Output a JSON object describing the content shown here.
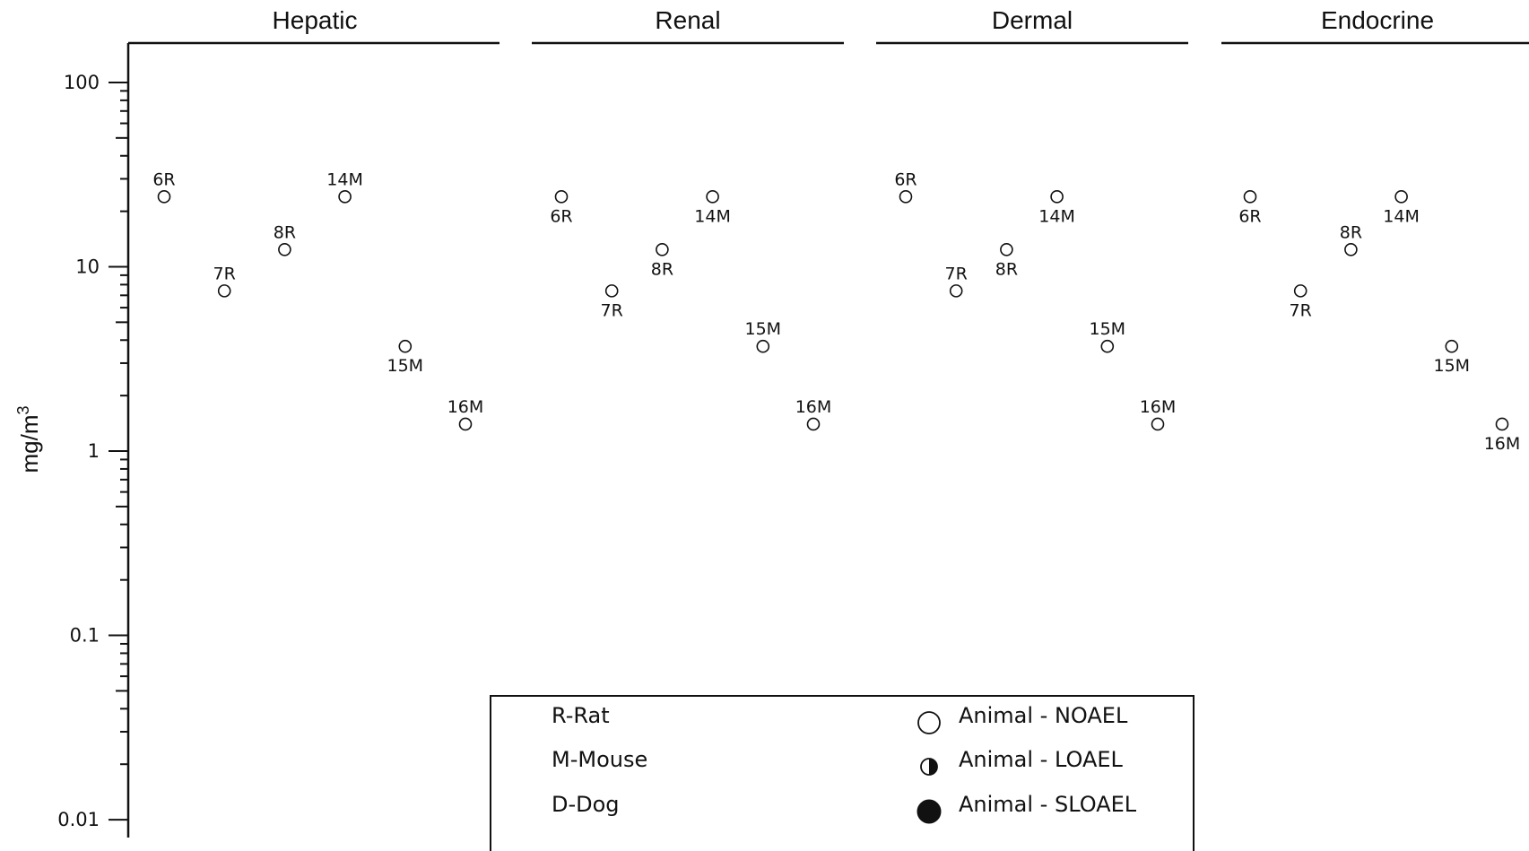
{
  "chart_data": {
    "type": "scatter",
    "yscale": "log",
    "ylabel": "mg/m",
    "ylabel_superscript": "3",
    "ylim": [
      0.008,
      160
    ],
    "y_tick_labels": [
      {
        "value": 100,
        "label": "100"
      },
      {
        "value": 10,
        "label": "10"
      },
      {
        "value": 1,
        "label": "1"
      },
      {
        "value": 0.1,
        "label": "0.1"
      },
      {
        "value": 0.01,
        "label": "0.01"
      }
    ],
    "marker_style": "open-circle",
    "panels": [
      {
        "title": "Hepatic",
        "points": [
          {
            "label": "6R",
            "value": 24,
            "effect": "NOAEL",
            "label_pos": "above"
          },
          {
            "label": "7R",
            "value": 7.4,
            "effect": "NOAEL",
            "label_pos": "above"
          },
          {
            "label": "8R",
            "value": 12.4,
            "effect": "NOAEL",
            "label_pos": "above"
          },
          {
            "label": "14M",
            "value": 24,
            "effect": "NOAEL",
            "label_pos": "above"
          },
          {
            "label": "15M",
            "value": 3.7,
            "effect": "NOAEL",
            "label_pos": "below"
          },
          {
            "label": "16M",
            "value": 1.4,
            "effect": "NOAEL",
            "label_pos": "above"
          }
        ]
      },
      {
        "title": "Renal",
        "points": [
          {
            "label": "6R",
            "value": 24,
            "effect": "NOAEL",
            "label_pos": "below"
          },
          {
            "label": "7R",
            "value": 7.4,
            "effect": "NOAEL",
            "label_pos": "below"
          },
          {
            "label": "8R",
            "value": 12.4,
            "effect": "NOAEL",
            "label_pos": "below"
          },
          {
            "label": "14M",
            "value": 24,
            "effect": "NOAEL",
            "label_pos": "below"
          },
          {
            "label": "15M",
            "value": 3.7,
            "effect": "NOAEL",
            "label_pos": "above"
          },
          {
            "label": "16M",
            "value": 1.4,
            "effect": "NOAEL",
            "label_pos": "above"
          }
        ]
      },
      {
        "title": "Dermal",
        "points": [
          {
            "label": "6R",
            "value": 24,
            "effect": "NOAEL",
            "label_pos": "above"
          },
          {
            "label": "7R",
            "value": 7.4,
            "effect": "NOAEL",
            "label_pos": "above"
          },
          {
            "label": "8R",
            "value": 12.4,
            "effect": "NOAEL",
            "label_pos": "below"
          },
          {
            "label": "14M",
            "value": 24,
            "effect": "NOAEL",
            "label_pos": "below"
          },
          {
            "label": "15M",
            "value": 3.7,
            "effect": "NOAEL",
            "label_pos": "above"
          },
          {
            "label": "16M",
            "value": 1.4,
            "effect": "NOAEL",
            "label_pos": "above"
          }
        ]
      },
      {
        "title": "Endocrine",
        "points": [
          {
            "label": "6R",
            "value": 24,
            "effect": "NOAEL",
            "label_pos": "below"
          },
          {
            "label": "7R",
            "value": 7.4,
            "effect": "NOAEL",
            "label_pos": "below"
          },
          {
            "label": "8R",
            "value": 12.4,
            "effect": "NOAEL",
            "label_pos": "above"
          },
          {
            "label": "14M",
            "value": 24,
            "effect": "NOAEL",
            "label_pos": "below"
          },
          {
            "label": "15M",
            "value": 3.7,
            "effect": "NOAEL",
            "label_pos": "below"
          },
          {
            "label": "16M",
            "value": 1.4,
            "effect": "NOAEL",
            "label_pos": "below"
          }
        ]
      }
    ],
    "legend": {
      "species": [
        "R-Rat",
        "M-Mouse",
        "D-Dog"
      ],
      "effects": [
        {
          "label": "Animal - NOAEL",
          "symbol": "open-circle"
        },
        {
          "label": "Animal - LOAEL",
          "symbol": "half-filled-circle"
        },
        {
          "label": "Animal - SLOAEL",
          "symbol": "filled-circle"
        }
      ],
      "placement": "bottom-center"
    }
  },
  "colors": {
    "ink": "#111111",
    "background": "#ffffff"
  }
}
